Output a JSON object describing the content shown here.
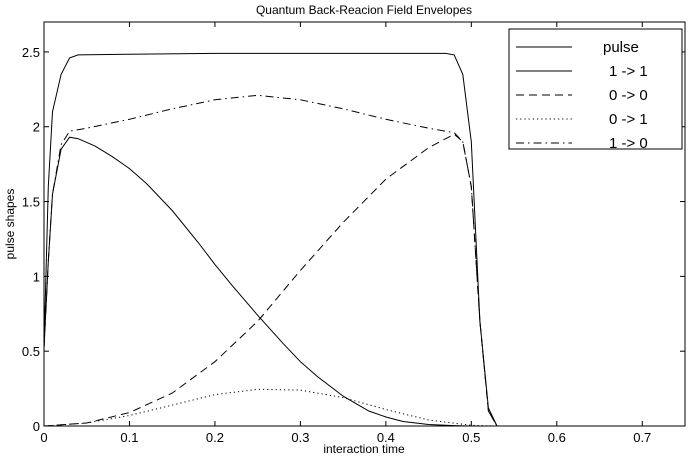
{
  "chart_data": {
    "type": "line",
    "title": "Quantum Back-Reacion Field Envelopes",
    "xlabel": "interaction time",
    "ylabel": "pulse shapes",
    "xlim": [
      0,
      0.75
    ],
    "ylim": [
      0,
      2.7
    ],
    "xticks": [
      0,
      0.1,
      0.2,
      0.3,
      0.4,
      0.5,
      0.6,
      0.7
    ],
    "xtick_labels": [
      "0",
      "0.1",
      "0.2",
      "0.3",
      "0.4",
      "0.5",
      "0.6",
      "0.7"
    ],
    "yticks": [
      0,
      0.5,
      1,
      1.5,
      2,
      2.5
    ],
    "ytick_labels": [
      "0",
      "0.5",
      "1",
      "1.5",
      "2",
      "2.5"
    ],
    "grid": false,
    "legend_position": "top-right",
    "series": [
      {
        "name": "pulse",
        "style": "solid",
        "x": [
          0,
          0.005,
          0.01,
          0.02,
          0.03,
          0.04,
          0.1,
          0.2,
          0.3,
          0.4,
          0.47,
          0.48,
          0.49,
          0.5,
          0.51,
          0.52,
          0.53
        ],
        "y": [
          0.52,
          1.6,
          2.1,
          2.35,
          2.46,
          2.48,
          2.485,
          2.49,
          2.49,
          2.49,
          2.49,
          2.48,
          2.35,
          1.9,
          0.7,
          0.12,
          0
        ]
      },
      {
        "name": "1 -> 1",
        "style": "solid",
        "x": [
          0,
          0.005,
          0.01,
          0.02,
          0.03,
          0.04,
          0.06,
          0.08,
          0.1,
          0.12,
          0.15,
          0.18,
          0.2,
          0.22,
          0.25,
          0.28,
          0.3,
          0.32,
          0.35,
          0.38,
          0.4,
          0.42,
          0.45,
          0.48,
          0.5
        ],
        "y": [
          0.52,
          1.1,
          1.55,
          1.85,
          1.93,
          1.92,
          1.87,
          1.8,
          1.72,
          1.62,
          1.44,
          1.23,
          1.08,
          0.94,
          0.74,
          0.55,
          0.43,
          0.33,
          0.2,
          0.1,
          0.06,
          0.03,
          0.01,
          0.003,
          0
        ]
      },
      {
        "name": "0 -> 0",
        "style": "dashed",
        "x": [
          0,
          0.05,
          0.1,
          0.15,
          0.2,
          0.25,
          0.3,
          0.35,
          0.4,
          0.45,
          0.48,
          0.49,
          0.5,
          0.51,
          0.52,
          0.53
        ],
        "y": [
          0,
          0.02,
          0.09,
          0.22,
          0.43,
          0.7,
          1.04,
          1.36,
          1.65,
          1.86,
          1.95,
          1.9,
          1.6,
          0.7,
          0.1,
          0
        ]
      },
      {
        "name": "0 -> 1",
        "style": "dotted",
        "x": [
          0,
          0.05,
          0.1,
          0.15,
          0.2,
          0.25,
          0.3,
          0.35,
          0.4,
          0.45,
          0.5,
          0.52,
          0.53
        ],
        "y": [
          0,
          0.02,
          0.07,
          0.14,
          0.21,
          0.245,
          0.24,
          0.19,
          0.11,
          0.04,
          0.005,
          0.001,
          0
        ]
      },
      {
        "name": "1 -> 0",
        "style": "dashdot",
        "x": [
          0,
          0.005,
          0.01,
          0.02,
          0.03,
          0.05,
          0.1,
          0.15,
          0.2,
          0.25,
          0.3,
          0.35,
          0.4,
          0.45,
          0.48,
          0.49,
          0.5,
          0.51,
          0.52,
          0.53
        ],
        "y": [
          0.52,
          1.1,
          1.55,
          1.88,
          1.97,
          1.99,
          2.05,
          2.12,
          2.18,
          2.21,
          2.18,
          2.12,
          2.05,
          1.99,
          1.96,
          1.9,
          1.6,
          0.7,
          0.1,
          0
        ]
      }
    ]
  }
}
